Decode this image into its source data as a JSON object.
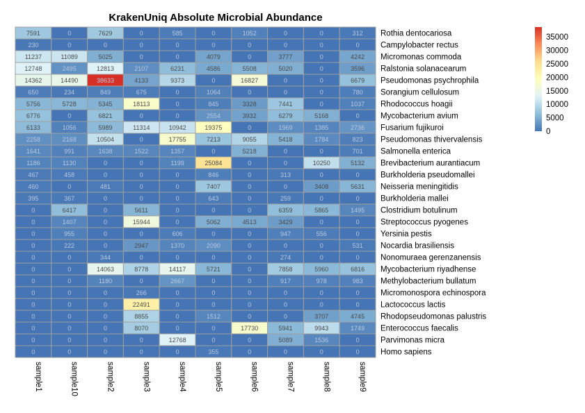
{
  "chart_data": {
    "type": "heatmap",
    "title": "KrakenUniq Absolute Microbial Abundance",
    "columns": [
      "sample1",
      "sample10",
      "sample2",
      "sample3",
      "sample4",
      "sample5",
      "sample6",
      "sample7",
      "sample8",
      "sample9"
    ],
    "rows": [
      "Rothia dentocariosa",
      "Campylobacter rectus",
      "Micromonas commoda",
      "Ralstonia solanacearum",
      "Pseudomonas psychrophila",
      "Sorangium cellulosum",
      "Rhodococcus hoagii",
      "Mycobacterium avium",
      "Fusarium fujikuroi",
      "Pseudomonas thivervalensis",
      "Salmonella enterica",
      "Brevibacterium aurantiacum",
      "Burkholderia pseudomallei",
      "Neisseria meningitidis",
      "Burkholderia mallei",
      "Clostridium botulinum",
      "Streptococcus pyogenes",
      "Yersinia pestis",
      "Nocardia brasiliensis",
      "Nonomuraea gerenzanensis",
      "Mycobacterium riyadhense",
      "Methylobacterium bullatum",
      "Micromonospora echinospora",
      "Lactococcus lactis",
      "Rhodopseudomonas palustris",
      "Enterococcus faecalis",
      "Parvimonas micra",
      "Homo sapiens"
    ],
    "values": [
      [
        7591,
        0,
        7629,
        0,
        585,
        0,
        1052,
        0,
        0,
        312
      ],
      [
        230,
        0,
        0,
        0,
        0,
        0,
        0,
        0,
        0,
        0
      ],
      [
        11237,
        11089,
        5025,
        0,
        0,
        4079,
        0,
        3777,
        0,
        4242
      ],
      [
        12748,
        2495,
        12813,
        2107,
        6231,
        4586,
        5508,
        5020,
        0,
        3596
      ],
      [
        14362,
        14490,
        38633,
        4133,
        9373,
        0,
        16827,
        0,
        0,
        6679
      ],
      [
        650,
        234,
        849,
        675,
        0,
        1064,
        0,
        0,
        0,
        780
      ],
      [
        5756,
        5728,
        5345,
        18113,
        0,
        845,
        3328,
        7441,
        0,
        1037
      ],
      [
        6776,
        0,
        6821,
        0,
        0,
        2554,
        3932,
        6279,
        5168,
        0
      ],
      [
        6133,
        1056,
        5989,
        11314,
        10942,
        19375,
        0,
        1969,
        1385,
        2736
      ],
      [
        2258,
        2168,
        10504,
        0,
        17755,
        7213,
        9055,
        5418,
        1784,
        823
      ],
      [
        1641,
        991,
        1638,
        1522,
        1357,
        0,
        5218,
        0,
        0,
        701
      ],
      [
        1186,
        1130,
        0,
        0,
        1199,
        25084,
        0,
        0,
        10250,
        5132
      ],
      [
        467,
        458,
        0,
        0,
        0,
        846,
        0,
        313,
        0,
        0
      ],
      [
        460,
        0,
        481,
        0,
        0,
        7407,
        0,
        0,
        3408,
        5631
      ],
      [
        395,
        367,
        0,
        0,
        0,
        643,
        0,
        259,
        0,
        0
      ],
      [
        0,
        6417,
        0,
        5611,
        0,
        0,
        0,
        6359,
        5865,
        1495
      ],
      [
        0,
        1407,
        0,
        15944,
        0,
        5062,
        4513,
        3429,
        0,
        0
      ],
      [
        0,
        955,
        0,
        0,
        606,
        0,
        0,
        947,
        556,
        0
      ],
      [
        0,
        222,
        0,
        2947,
        1370,
        2090,
        0,
        0,
        0,
        531
      ],
      [
        0,
        0,
        344,
        0,
        0,
        0,
        0,
        274,
        0,
        0
      ],
      [
        0,
        0,
        14063,
        8778,
        14117,
        5721,
        0,
        7858,
        5960,
        6816
      ],
      [
        0,
        0,
        1180,
        0,
        2667,
        0,
        0,
        917,
        978,
        983
      ],
      [
        0,
        0,
        0,
        266,
        0,
        0,
        0,
        0,
        0,
        0
      ],
      [
        0,
        0,
        0,
        22491,
        0,
        0,
        0,
        0,
        0,
        0
      ],
      [
        0,
        0,
        0,
        8855,
        0,
        1512,
        0,
        0,
        3707,
        4745
      ],
      [
        0,
        0,
        0,
        8070,
        0,
        0,
        17730,
        5941,
        9943,
        1749
      ],
      [
        0,
        0,
        0,
        0,
        12768,
        0,
        0,
        5089,
        1536,
        0
      ],
      [
        0,
        0,
        0,
        0,
        0,
        355,
        0,
        0,
        0,
        0
      ]
    ],
    "color_scale": {
      "min": 0,
      "max": 38633,
      "colors": [
        "#4575b4",
        "#91bfdb",
        "#e0f3f8",
        "#ffffbf",
        "#fee090",
        "#fc8d59",
        "#d73027"
      ]
    },
    "legend": {
      "position": "right",
      "ticks": [
        0,
        5000,
        10000,
        15000,
        20000,
        25000,
        30000,
        35000
      ]
    },
    "cell_border_color": "#a0a0a0",
    "grid": false
  }
}
